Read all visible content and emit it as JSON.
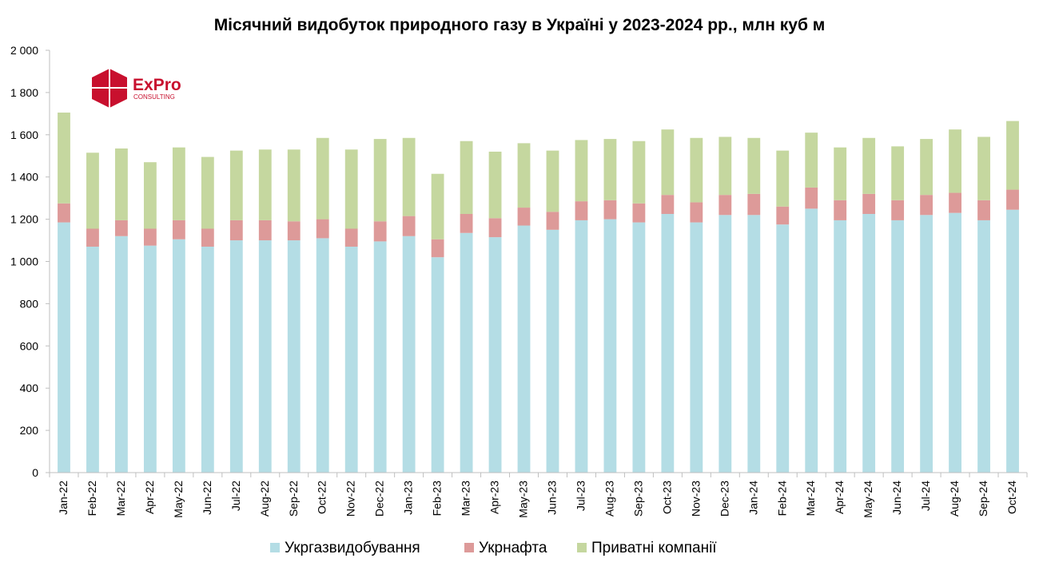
{
  "logo": {
    "name": "ExPro",
    "subtitle": "CONSULTING",
    "color": "#c8102e"
  },
  "chart_data": {
    "type": "bar",
    "stacked": true,
    "title": "Місячний видобуток природного газу в Україні у 2023-2024 рр., млн куб м",
    "xlabel": "",
    "ylabel": "",
    "ylim": [
      0,
      2000
    ],
    "yticks": [
      0,
      200,
      400,
      600,
      800,
      1000,
      1200,
      1400,
      1600,
      1800,
      2000
    ],
    "ytick_labels": [
      "0",
      "200",
      "400",
      "600",
      "800",
      "1 000",
      "1 200",
      "1 400",
      "1 600",
      "1 800",
      "2 000"
    ],
    "grid": false,
    "legend_position": "bottom",
    "categories": [
      "Jan-22",
      "Feb-22",
      "Mar-22",
      "Apr-22",
      "May-22",
      "Jun-22",
      "Jul-22",
      "Aug-22",
      "Sep-22",
      "Oct-22",
      "Nov-22",
      "Dec-22",
      "Jan-23",
      "Feb-23",
      "Mar-23",
      "Apr-23",
      "May-23",
      "Jun-23",
      "Jul-23",
      "Aug-23",
      "Sep-23",
      "Oct-23",
      "Nov-23",
      "Dec-23",
      "Jan-24",
      "Feb-24",
      "Mar-24",
      "Apr-24",
      "May-24",
      "Jun-24",
      "Jul-24",
      "Aug-24",
      "Sep-24",
      "Oct-24"
    ],
    "series": [
      {
        "name": "Укргазвидобування",
        "color": "#b4dde5",
        "values": [
          1185,
          1070,
          1120,
          1075,
          1105,
          1070,
          1100,
          1100,
          1100,
          1110,
          1070,
          1095,
          1120,
          1020,
          1135,
          1115,
          1170,
          1150,
          1195,
          1200,
          1185,
          1225,
          1185,
          1220,
          1220,
          1175,
          1250,
          1195,
          1225,
          1195,
          1220,
          1230,
          1195,
          1245
        ]
      },
      {
        "name": "Укрнафта",
        "color": "#dd9a99",
        "values": [
          90,
          85,
          75,
          80,
          90,
          85,
          95,
          95,
          90,
          90,
          85,
          95,
          95,
          85,
          90,
          90,
          85,
          85,
          90,
          90,
          90,
          90,
          95,
          95,
          100,
          85,
          100,
          95,
          95,
          95,
          95,
          95,
          95,
          95
        ]
      },
      {
        "name": "Приватні компанії",
        "color": "#c5d79f",
        "values": [
          430,
          360,
          340,
          315,
          345,
          340,
          330,
          335,
          340,
          385,
          375,
          390,
          370,
          310,
          345,
          315,
          305,
          290,
          290,
          290,
          295,
          310,
          305,
          275,
          265,
          265,
          260,
          250,
          265,
          255,
          265,
          300,
          300,
          325
        ]
      }
    ]
  }
}
